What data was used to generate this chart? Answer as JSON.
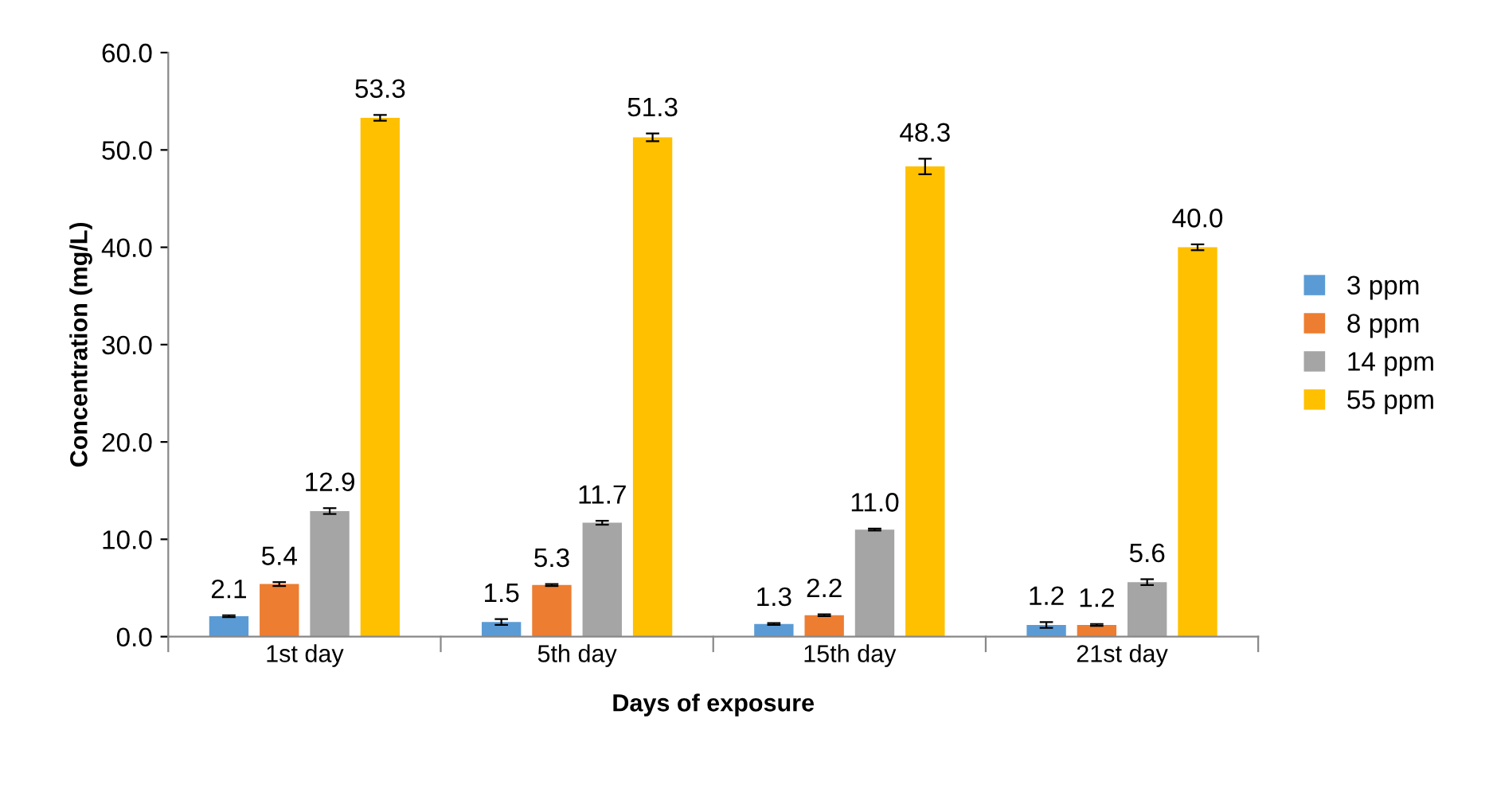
{
  "chart_data": {
    "type": "bar",
    "xlabel": "Days of exposure",
    "ylabel": "Concentration (mg/L)",
    "categories": [
      "1st day",
      "5th day",
      "15th day",
      "21st day"
    ],
    "series": [
      {
        "name": "3 ppm",
        "color": "#5b9bd5",
        "values": [
          2.1,
          1.5,
          1.3,
          1.2
        ],
        "errors": [
          0.1,
          0.3,
          0.1,
          0.3
        ],
        "value_labels": [
          "2.1",
          "1.5",
          "1.3",
          "1.2"
        ]
      },
      {
        "name": "8 ppm",
        "color": "#ed7d31",
        "values": [
          5.4,
          5.3,
          2.2,
          1.2
        ],
        "errors": [
          0.2,
          0.1,
          0.1,
          0.1
        ],
        "value_labels": [
          "5.4",
          "5.3",
          "2.2",
          "1.2"
        ]
      },
      {
        "name": "14 ppm",
        "color": "#a5a5a5",
        "values": [
          12.9,
          11.7,
          11.0,
          5.6
        ],
        "errors": [
          0.3,
          0.2,
          0.1,
          0.3
        ],
        "value_labels": [
          "12.9",
          "11.7",
          "11.0",
          "5.6"
        ]
      },
      {
        "name": "55 ppm",
        "color": "#ffc000",
        "values": [
          53.3,
          51.3,
          48.3,
          40.0
        ],
        "errors": [
          0.3,
          0.4,
          0.8,
          0.3
        ],
        "value_labels": [
          "53.3",
          "51.3",
          "48.3",
          "40.0"
        ]
      }
    ],
    "ylim": [
      0,
      60
    ],
    "yticks": [
      {
        "value": 0,
        "label": "0.0"
      },
      {
        "value": 10,
        "label": "10.0"
      },
      {
        "value": 20,
        "label": "20.0"
      },
      {
        "value": 30,
        "label": "30.0"
      },
      {
        "value": 40,
        "label": "40.0"
      },
      {
        "value": 50,
        "label": "50.0"
      },
      {
        "value": 60,
        "label": "60.0"
      }
    ],
    "grid": false,
    "legend": "right"
  }
}
